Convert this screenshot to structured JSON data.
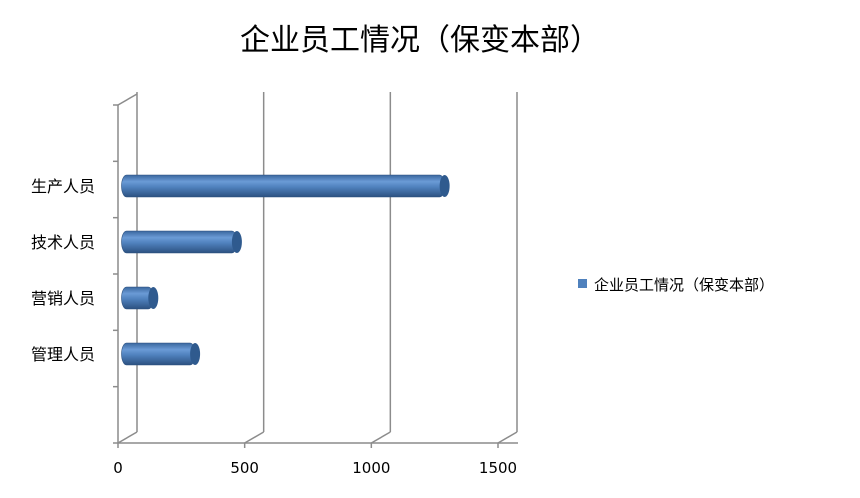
{
  "chart_data": {
    "type": "bar",
    "orientation": "horizontal",
    "style": "3d-cylinder",
    "title": "企业员工情况（保变本部）",
    "categories": [
      "生产人员",
      "技术人员",
      "营销人员",
      "管理人员"
    ],
    "series": [
      {
        "name": "企业员工情况（保变本部）",
        "values": [
          1240,
          420,
          90,
          255
        ],
        "color": "#4f81bd"
      }
    ],
    "xlim": [
      0,
      1500
    ],
    "xticks": [
      "0",
      "500",
      "1000",
      "1500"
    ],
    "grid": true,
    "legend": "right"
  }
}
